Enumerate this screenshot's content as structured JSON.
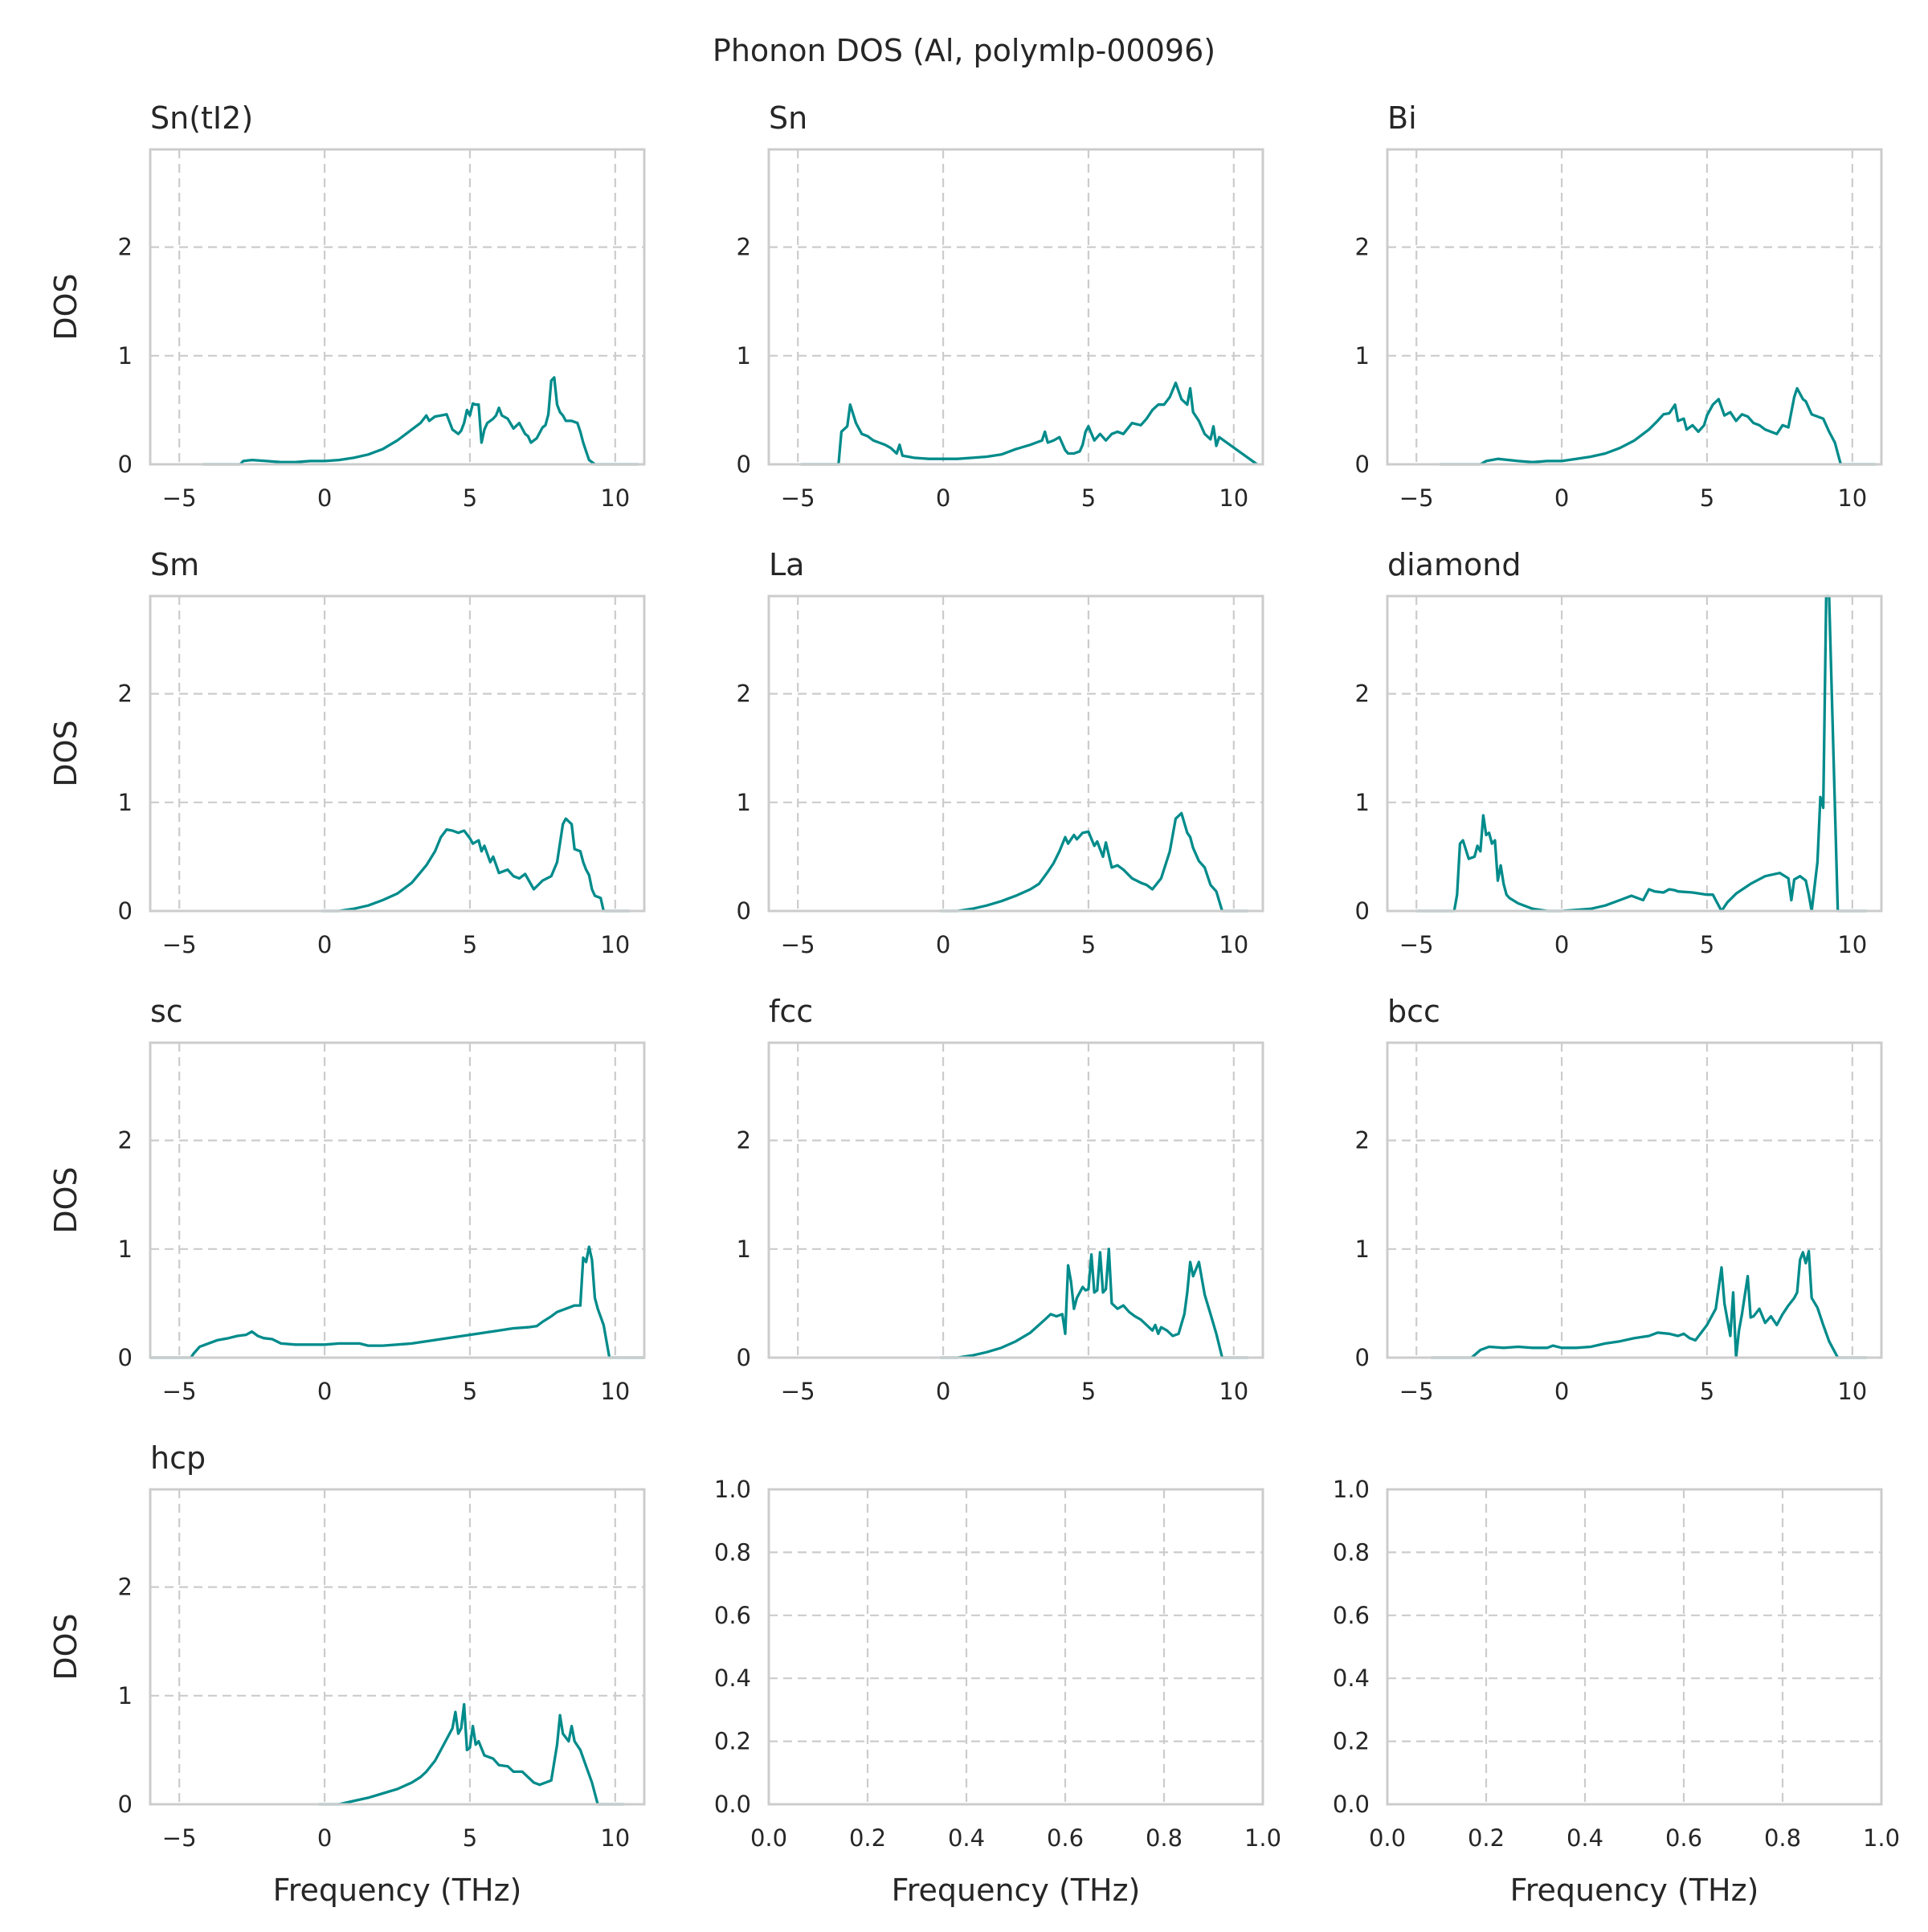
{
  "figure": {
    "title": "Phonon DOS (Al, polymlp-00096)",
    "line_color": "#008b8b"
  },
  "chart_data": [
    {
      "type": "line",
      "title": "Sn(tI2)",
      "xlabel": "",
      "ylabel": "DOS",
      "xlim": [
        -6,
        11
      ],
      "ylim": [
        0,
        2.9
      ],
      "xticks": [
        "−5",
        "0",
        "5",
        "10"
      ],
      "yticks": [
        "0",
        "1",
        "2"
      ],
      "grid": true,
      "x": [
        -4.2,
        -2.9,
        -2.8,
        -2.5,
        -2.0,
        -1.5,
        -1.0,
        -0.5,
        0.0,
        0.5,
        1.0,
        1.5,
        2.0,
        2.5,
        3.0,
        3.3,
        3.5,
        3.6,
        3.8,
        4.0,
        4.2,
        4.4,
        4.6,
        4.7,
        4.8,
        4.9,
        5.0,
        5.1,
        5.2,
        5.3,
        5.4,
        5.5,
        5.6,
        5.7,
        5.8,
        5.9,
        6.0,
        6.1,
        6.3,
        6.5,
        6.7,
        6.9,
        7.0,
        7.1,
        7.3,
        7.5,
        7.6,
        7.7,
        7.8,
        7.9,
        8.0,
        8.1,
        8.2,
        8.3,
        8.5,
        8.7,
        8.8,
        8.9,
        9.0,
        9.1,
        9.3,
        9.6,
        10.8
      ],
      "y": [
        0,
        0,
        0.03,
        0.04,
        0.03,
        0.02,
        0.02,
        0.03,
        0.03,
        0.04,
        0.06,
        0.09,
        0.14,
        0.22,
        0.32,
        0.38,
        0.45,
        0.4,
        0.44,
        0.45,
        0.46,
        0.32,
        0.28,
        0.31,
        0.38,
        0.5,
        0.45,
        0.56,
        0.55,
        0.55,
        0.2,
        0.32,
        0.38,
        0.4,
        0.42,
        0.45,
        0.52,
        0.45,
        0.42,
        0.33,
        0.38,
        0.28,
        0.26,
        0.2,
        0.24,
        0.34,
        0.36,
        0.46,
        0.77,
        0.8,
        0.55,
        0.48,
        0.45,
        0.4,
        0.4,
        0.38,
        0.3,
        0.2,
        0.12,
        0.04,
        0,
        0,
        0
      ]
    },
    {
      "type": "line",
      "title": "Sn",
      "xlabel": "",
      "ylabel": "",
      "xlim": [
        -6,
        11
      ],
      "ylim": [
        0,
        2.9
      ],
      "xticks": [
        "−5",
        "0",
        "5",
        "10"
      ],
      "yticks": [
        "0",
        "1",
        "2"
      ],
      "grid": true,
      "x": [
        -4.9,
        -3.6,
        -3.5,
        -3.3,
        -3.2,
        -3.0,
        -2.8,
        -2.6,
        -2.4,
        -2.2,
        -2.0,
        -1.8,
        -1.6,
        -1.5,
        -1.4,
        -1.2,
        -1.0,
        -0.5,
        0.0,
        0.5,
        1.0,
        1.5,
        2.0,
        2.5,
        3.0,
        3.2,
        3.4,
        3.5,
        3.6,
        3.8,
        4.0,
        4.2,
        4.3,
        4.5,
        4.7,
        4.8,
        4.9,
        5.0,
        5.2,
        5.4,
        5.6,
        5.8,
        6.0,
        6.2,
        6.5,
        6.8,
        7.0,
        7.2,
        7.4,
        7.6,
        7.8,
        8.0,
        8.2,
        8.4,
        8.5,
        8.6,
        8.8,
        9.0,
        9.2,
        9.3,
        9.4,
        9.5,
        10.8
      ],
      "y": [
        0,
        0,
        0.3,
        0.35,
        0.55,
        0.38,
        0.28,
        0.26,
        0.22,
        0.2,
        0.18,
        0.15,
        0.1,
        0.18,
        0.08,
        0.07,
        0.06,
        0.05,
        0.05,
        0.05,
        0.06,
        0.07,
        0.09,
        0.14,
        0.18,
        0.2,
        0.22,
        0.3,
        0.2,
        0.22,
        0.25,
        0.13,
        0.1,
        0.1,
        0.12,
        0.18,
        0.3,
        0.35,
        0.22,
        0.28,
        0.22,
        0.28,
        0.3,
        0.28,
        0.38,
        0.36,
        0.42,
        0.5,
        0.55,
        0.55,
        0.62,
        0.75,
        0.6,
        0.55,
        0.7,
        0.48,
        0.4,
        0.28,
        0.23,
        0.35,
        0.17,
        0.25,
        0
      ]
    },
    {
      "type": "line",
      "title": "Bi",
      "xlabel": "",
      "ylabel": "",
      "xlim": [
        -6,
        11
      ],
      "ylim": [
        0,
        2.9
      ],
      "xticks": [
        "−5",
        "0",
        "5",
        "10"
      ],
      "yticks": [
        "0",
        "1",
        "2"
      ],
      "grid": true,
      "x": [
        -4.2,
        -2.8,
        -2.6,
        -2.2,
        -1.5,
        -1.0,
        -0.5,
        0.0,
        0.5,
        1.0,
        1.5,
        2.0,
        2.5,
        3.0,
        3.3,
        3.5,
        3.7,
        3.9,
        4.0,
        4.2,
        4.3,
        4.5,
        4.7,
        4.9,
        5.0,
        5.2,
        5.4,
        5.6,
        5.8,
        6.0,
        6.2,
        6.4,
        6.6,
        6.8,
        7.0,
        7.2,
        7.4,
        7.6,
        7.8,
        8.0,
        8.1,
        8.3,
        8.4,
        8.6,
        8.8,
        9.0,
        9.2,
        9.4,
        9.6,
        10.8
      ],
      "y": [
        0,
        0,
        0.03,
        0.05,
        0.03,
        0.02,
        0.03,
        0.03,
        0.05,
        0.07,
        0.1,
        0.15,
        0.22,
        0.32,
        0.4,
        0.46,
        0.47,
        0.55,
        0.4,
        0.42,
        0.32,
        0.36,
        0.3,
        0.36,
        0.45,
        0.55,
        0.6,
        0.45,
        0.48,
        0.4,
        0.46,
        0.44,
        0.38,
        0.36,
        0.32,
        0.3,
        0.28,
        0.36,
        0.34,
        0.62,
        0.7,
        0.6,
        0.58,
        0.46,
        0.44,
        0.42,
        0.3,
        0.2,
        0,
        0
      ]
    },
    {
      "type": "line",
      "title": "Sm",
      "xlabel": "",
      "ylabel": "DOS",
      "xlim": [
        -6,
        11
      ],
      "ylim": [
        0,
        2.9
      ],
      "xticks": [
        "−5",
        "0",
        "5",
        "10"
      ],
      "yticks": [
        "0",
        "1",
        "2"
      ],
      "grid": true,
      "x": [
        -0.1,
        0.5,
        1.0,
        1.5,
        2.0,
        2.5,
        3.0,
        3.5,
        3.8,
        4.0,
        4.2,
        4.4,
        4.6,
        4.8,
        5.0,
        5.1,
        5.3,
        5.4,
        5.5,
        5.7,
        5.8,
        6.0,
        6.3,
        6.5,
        6.7,
        6.9,
        7.2,
        7.5,
        7.8,
        8.0,
        8.2,
        8.3,
        8.5,
        8.6,
        8.8,
        8.9,
        9.0,
        9.1,
        9.2,
        9.3,
        9.5,
        9.6,
        10.5
      ],
      "y": [
        0,
        0,
        0.02,
        0.05,
        0.1,
        0.16,
        0.26,
        0.42,
        0.55,
        0.68,
        0.75,
        0.74,
        0.72,
        0.74,
        0.67,
        0.62,
        0.65,
        0.55,
        0.6,
        0.45,
        0.5,
        0.35,
        0.38,
        0.32,
        0.3,
        0.34,
        0.2,
        0.28,
        0.32,
        0.45,
        0.8,
        0.85,
        0.8,
        0.57,
        0.55,
        0.45,
        0.38,
        0.33,
        0.2,
        0.14,
        0.12,
        0,
        0
      ]
    },
    {
      "type": "line",
      "title": "La",
      "xlabel": "",
      "ylabel": "",
      "xlim": [
        -6,
        11
      ],
      "ylim": [
        0,
        2.9
      ],
      "xticks": [
        "−5",
        "0",
        "5",
        "10"
      ],
      "yticks": [
        "0",
        "1",
        "2"
      ],
      "grid": true,
      "x": [
        -0.1,
        0.5,
        1.0,
        1.5,
        2.0,
        2.5,
        3.0,
        3.3,
        3.6,
        3.8,
        4.0,
        4.2,
        4.3,
        4.5,
        4.6,
        4.8,
        5.0,
        5.2,
        5.3,
        5.5,
        5.6,
        5.8,
        6.0,
        6.2,
        6.5,
        6.8,
        7.0,
        7.2,
        7.5,
        7.8,
        8.0,
        8.2,
        8.4,
        8.5,
        8.6,
        8.8,
        9.0,
        9.2,
        9.4,
        9.6,
        10.5
      ],
      "y": [
        0,
        0,
        0.02,
        0.05,
        0.09,
        0.14,
        0.2,
        0.25,
        0.36,
        0.44,
        0.55,
        0.68,
        0.62,
        0.7,
        0.66,
        0.72,
        0.73,
        0.6,
        0.64,
        0.5,
        0.63,
        0.4,
        0.42,
        0.38,
        0.3,
        0.26,
        0.24,
        0.2,
        0.3,
        0.55,
        0.85,
        0.9,
        0.72,
        0.68,
        0.58,
        0.46,
        0.4,
        0.24,
        0.18,
        0,
        0
      ]
    },
    {
      "type": "line",
      "title": "diamond",
      "xlabel": "",
      "ylabel": "",
      "xlim": [
        -6,
        11
      ],
      "ylim": [
        0,
        2.9
      ],
      "xticks": [
        "−5",
        "0",
        "5",
        "10"
      ],
      "yticks": [
        "0",
        "1",
        "2"
      ],
      "grid": true,
      "x": [
        -5.0,
        -3.7,
        -3.6,
        -3.5,
        -3.4,
        -3.2,
        -3.0,
        -2.9,
        -2.8,
        -2.7,
        -2.6,
        -2.5,
        -2.4,
        -2.3,
        -2.2,
        -2.1,
        -2.0,
        -1.9,
        -1.8,
        -1.5,
        -1.0,
        -0.5,
        0.0,
        0.5,
        1.0,
        1.5,
        2.0,
        2.4,
        2.8,
        3.0,
        3.2,
        3.5,
        3.7,
        3.9,
        4.0,
        4.5,
        5.0,
        5.2,
        5.3,
        5.5,
        5.7,
        6.0,
        6.5,
        7.0,
        7.5,
        7.8,
        7.9,
        8.0,
        8.2,
        8.4,
        8.5,
        8.6,
        8.8,
        8.9,
        9.0,
        9.1,
        9.2,
        9.5,
        10.5
      ],
      "y": [
        0,
        0,
        0.15,
        0.62,
        0.65,
        0.48,
        0.5,
        0.6,
        0.55,
        0.88,
        0.7,
        0.72,
        0.62,
        0.65,
        0.28,
        0.42,
        0.25,
        0.15,
        0.12,
        0.07,
        0.02,
        0,
        0,
        0.01,
        0.02,
        0.05,
        0.1,
        0.14,
        0.1,
        0.2,
        0.18,
        0.17,
        0.2,
        0.19,
        0.18,
        0.17,
        0.15,
        0.15,
        0.1,
        0,
        0.08,
        0.16,
        0.25,
        0.32,
        0.35,
        0.3,
        0.1,
        0.29,
        0.32,
        0.28,
        0.15,
        0,
        0.45,
        1.05,
        0.95,
        2.9,
        2.9,
        0,
        0
      ]
    },
    {
      "type": "line",
      "title": "sc",
      "xlabel": "",
      "ylabel": "DOS",
      "xlim": [
        -6,
        11
      ],
      "ylim": [
        0,
        2.9
      ],
      "xticks": [
        "−5",
        "0",
        "5",
        "10"
      ],
      "yticks": [
        "0",
        "1",
        "2"
      ],
      "grid": true,
      "x": [
        -6.0,
        -4.6,
        -4.5,
        -4.3,
        -4.0,
        -3.7,
        -3.3,
        -3.0,
        -2.7,
        -2.5,
        -2.3,
        -2.1,
        -1.8,
        -1.5,
        -1.0,
        -0.5,
        0.0,
        0.5,
        1.0,
        1.2,
        1.5,
        2.0,
        3.0,
        4.0,
        5.0,
        6.0,
        6.5,
        7.0,
        7.3,
        7.5,
        7.8,
        8.0,
        8.3,
        8.6,
        8.8,
        8.9,
        9.0,
        9.1,
        9.2,
        9.3,
        9.4,
        9.6,
        9.8,
        11.0
      ],
      "y": [
        0,
        0,
        0.04,
        0.1,
        0.13,
        0.16,
        0.18,
        0.2,
        0.21,
        0.24,
        0.2,
        0.18,
        0.17,
        0.13,
        0.12,
        0.12,
        0.12,
        0.13,
        0.13,
        0.13,
        0.11,
        0.11,
        0.13,
        0.17,
        0.21,
        0.25,
        0.27,
        0.28,
        0.29,
        0.33,
        0.38,
        0.42,
        0.45,
        0.48,
        0.48,
        0.92,
        0.88,
        1.02,
        0.9,
        0.55,
        0.45,
        0.3,
        0,
        0
      ]
    },
    {
      "type": "line",
      "title": "fcc",
      "xlabel": "",
      "ylabel": "",
      "xlim": [
        -6,
        11
      ],
      "ylim": [
        0,
        2.9
      ],
      "xticks": [
        "−5",
        "0",
        "5",
        "10"
      ],
      "yticks": [
        "0",
        "1",
        "2"
      ],
      "grid": true,
      "x": [
        -0.1,
        0.5,
        1.0,
        1.5,
        2.0,
        2.5,
        3.0,
        3.5,
        3.7,
        3.9,
        4.1,
        4.2,
        4.3,
        4.4,
        4.5,
        4.6,
        4.8,
        4.9,
        5.0,
        5.1,
        5.2,
        5.3,
        5.4,
        5.5,
        5.6,
        5.7,
        5.8,
        6.0,
        6.2,
        6.4,
        6.6,
        6.8,
        7.0,
        7.2,
        7.3,
        7.4,
        7.5,
        7.7,
        7.9,
        8.1,
        8.3,
        8.4,
        8.5,
        8.6,
        8.8,
        9.0,
        9.2,
        9.4,
        9.6,
        10.5
      ],
      "y": [
        0,
        0,
        0.02,
        0.05,
        0.09,
        0.15,
        0.23,
        0.35,
        0.4,
        0.38,
        0.4,
        0.22,
        0.85,
        0.7,
        0.45,
        0.55,
        0.65,
        0.62,
        0.63,
        0.95,
        0.6,
        0.62,
        0.97,
        0.6,
        0.63,
        1.0,
        0.5,
        0.45,
        0.48,
        0.42,
        0.38,
        0.35,
        0.3,
        0.25,
        0.3,
        0.22,
        0.28,
        0.25,
        0.2,
        0.22,
        0.4,
        0.6,
        0.88,
        0.75,
        0.88,
        0.58,
        0.4,
        0.22,
        0,
        0
      ]
    },
    {
      "type": "line",
      "title": "bcc",
      "xlabel": "",
      "ylabel": "",
      "xlim": [
        -6,
        11
      ],
      "ylim": [
        0,
        2.9
      ],
      "xticks": [
        "−5",
        "0",
        "5",
        "10"
      ],
      "yticks": [
        "0",
        "1",
        "2"
      ],
      "grid": true,
      "x": [
        -4.5,
        -3.1,
        -2.8,
        -2.5,
        -2.0,
        -1.5,
        -1.0,
        -0.5,
        -0.3,
        0.0,
        0.5,
        1.0,
        1.5,
        2.0,
        2.5,
        3.0,
        3.3,
        3.7,
        4.0,
        4.2,
        4.4,
        4.6,
        5.0,
        5.3,
        5.5,
        5.6,
        5.8,
        5.9,
        6.0,
        6.1,
        6.2,
        6.4,
        6.5,
        6.6,
        6.8,
        7.0,
        7.2,
        7.4,
        7.6,
        7.8,
        8.0,
        8.1,
        8.2,
        8.3,
        8.4,
        8.5,
        8.6,
        8.8,
        9.0,
        9.2,
        9.5,
        10.5
      ],
      "y": [
        0,
        0,
        0.07,
        0.1,
        0.09,
        0.1,
        0.09,
        0.09,
        0.11,
        0.09,
        0.09,
        0.1,
        0.13,
        0.15,
        0.18,
        0.2,
        0.23,
        0.22,
        0.2,
        0.22,
        0.18,
        0.16,
        0.3,
        0.45,
        0.83,
        0.5,
        0.2,
        0.6,
        0,
        0.25,
        0.4,
        0.75,
        0.37,
        0.38,
        0.45,
        0.32,
        0.38,
        0.3,
        0.4,
        0.48,
        0.55,
        0.6,
        0.9,
        0.97,
        0.87,
        0.98,
        0.55,
        0.46,
        0.3,
        0.15,
        0,
        0
      ]
    },
    {
      "type": "line",
      "title": "hcp",
      "xlabel": "Frequency (THz)",
      "ylabel": "DOS",
      "xlim": [
        -6,
        11
      ],
      "ylim": [
        0,
        2.9
      ],
      "xticks": [
        "−5",
        "0",
        "5",
        "10"
      ],
      "yticks": [
        "0",
        "1",
        "2"
      ],
      "grid": true,
      "x": [
        -0.2,
        0.5,
        1.0,
        1.5,
        2.0,
        2.5,
        3.0,
        3.3,
        3.5,
        3.8,
        4.0,
        4.2,
        4.4,
        4.5,
        4.6,
        4.7,
        4.8,
        4.9,
        5.0,
        5.1,
        5.2,
        5.3,
        5.5,
        5.8,
        6.0,
        6.3,
        6.5,
        6.8,
        7.0,
        7.2,
        7.4,
        7.6,
        7.8,
        8.0,
        8.1,
        8.2,
        8.4,
        8.5,
        8.6,
        8.8,
        9.0,
        9.2,
        9.4,
        10.3
      ],
      "y": [
        0,
        0,
        0.03,
        0.06,
        0.1,
        0.14,
        0.2,
        0.25,
        0.3,
        0.4,
        0.5,
        0.6,
        0.7,
        0.85,
        0.65,
        0.7,
        0.92,
        0.5,
        0.52,
        0.72,
        0.55,
        0.58,
        0.45,
        0.42,
        0.36,
        0.35,
        0.3,
        0.3,
        0.25,
        0.2,
        0.18,
        0.2,
        0.22,
        0.55,
        0.82,
        0.65,
        0.58,
        0.72,
        0.58,
        0.5,
        0.35,
        0.2,
        0,
        0
      ]
    },
    {
      "type": "line",
      "title": "",
      "xlabel": "Frequency (THz)",
      "ylabel": "",
      "xlim": [
        0,
        1
      ],
      "ylim": [
        0,
        1
      ],
      "xticks": [
        "0.0",
        "0.2",
        "0.4",
        "0.6",
        "0.8",
        "1.0"
      ],
      "yticks": [
        "0.0",
        "0.2",
        "0.4",
        "0.6",
        "0.8",
        "1.0"
      ],
      "grid": true,
      "x": [],
      "y": []
    },
    {
      "type": "line",
      "title": "",
      "xlabel": "Frequency (THz)",
      "ylabel": "",
      "xlim": [
        0,
        1
      ],
      "ylim": [
        0,
        1
      ],
      "xticks": [
        "0.0",
        "0.2",
        "0.4",
        "0.6",
        "0.8",
        "1.0"
      ],
      "yticks": [
        "0.0",
        "0.2",
        "0.4",
        "0.6",
        "0.8",
        "1.0"
      ],
      "grid": true,
      "x": [],
      "y": []
    }
  ]
}
